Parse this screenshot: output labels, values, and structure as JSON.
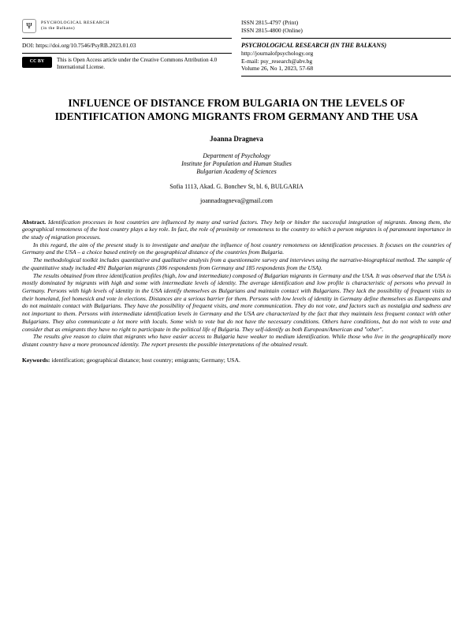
{
  "header": {
    "logo_caption": "PSYCHOLOGICAL RESEARCH",
    "logo_sub": "(in the Balkans)",
    "doi_label": "DOI:",
    "doi": "https://doi.org/10.7546/PsyRB.2023.01.03",
    "cc_badge": "CC BY",
    "cc_text": "This is Open Access article under the Creative Commons Attribution 4.0 International License.",
    "issn_print": "ISSN 2815-4797 (Print)",
    "issn_online": "ISSN 2815-4800 (Online)",
    "journal_name": "PSYCHOLOGICAL RESEARCH (IN THE BALKANS)",
    "journal_url": "http://journalofpsychology.org",
    "journal_email_label": "E-mail:",
    "journal_email": "psy_research@abv.bg",
    "volume": "Volume 26, No 1, 2023, 57-68"
  },
  "title": "INFLUENCE OF DISTANCE FROM BULGARIA ON THE LEVELS OF IDENTIFICATION AMONG MIGRANTS FROM GERMANY AND THE USA",
  "author": "Joanna Dragneva",
  "affiliation": {
    "dept": "Department of Psychology",
    "inst": "Institute for Population and Human Studies",
    "acad": "Bulgarian Academy of Sciences"
  },
  "address": "Sofia 1113, Akad. G. Bonchev St, bl. 6, BULGARIA",
  "email": "joannadragneva@gmail.com",
  "abstract": {
    "label": "Abstract.",
    "p1": "Identification processes in host countries are influenced by many and varied factors. They help or hinder the successful integration of migrants. Among them, the geographical remoteness of the host country plays a key role. In fact, the role of proximity or remoteness to the country to which a person migrates is of paramount importance in the study of migration processes.",
    "p2": "In this regard, the aim of the present study is to investigate and analyze the influence of host country remoteness on identification processes. It focuses on the countries of Germany and the USA – a choice based entirely on the geographical distance of the countries from Bulgaria.",
    "p3": "The methodological toolkit includes quantitative and qualitative analysis from a questionnaire survey and interviews using the narrative-biographical method. The sample of the quantitative study included 491 Bulgarian migrants (306 respondents from Germany and 185 respondents from the USA).",
    "p4": "The results obtained from three identification profiles (high, low and intermediate) composed of Bulgarian migrants in Germany and the USA. It was observed that the USA is mostly dominated by migrants with high and some with intermediate levels of identity. The average identification and low profile is characteristic of persons who prevail in Germany. Persons with high levels of identity in the USA identify themselves as Bulgarians and maintain contact with Bulgarians. They lack the possibility of frequent visits to their homeland, feel homesick and vote in elections. Distances are a serious barrier for them. Persons with low levels of identity in Germany define themselves as Europeans and do not maintain contact with Bulgarians. They have the possibility of frequent visits, and more communication. They do not vote, and factors such as nostalgia and sadness are not important to them. Persons with intermediate identification levels in Germany and the USA are characterized by the fact that they maintain less frequent contact with other Bulgarians. They also communicate a lot more with locals. Some wish to vote but do not have the necessary conditions. Others have conditions, but do not wish to vote and consider that as emigrants they have no right to participate in the political life of Bulgaria. They self-identify as both European/American and \"other\".",
    "p5": "The results give reason to claim that migrants who have easier access to Bulgaria have weaker to medium identification. While those who live in the geographically more distant country have a more pronounced identity. The report presents the possible interpretations of the obtained result."
  },
  "keywords": {
    "label": "Keywords:",
    "text": "identification; geographical distance; host country; emigrants; Germany; USA."
  }
}
